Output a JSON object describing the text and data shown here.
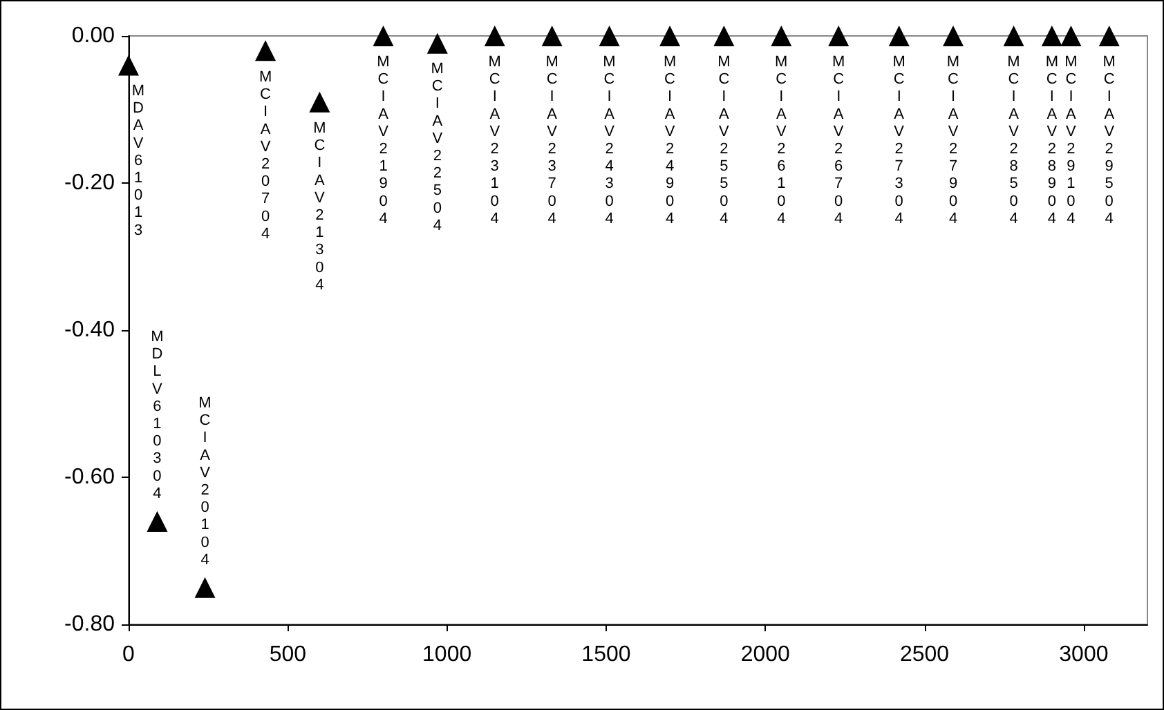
{
  "chart_data": {
    "type": "scatter",
    "marker": "triangle",
    "grid": false,
    "x": [
      0,
      90,
      240,
      430,
      600,
      800,
      970,
      1150,
      1330,
      1510,
      1700,
      1870,
      2050,
      2230,
      2420,
      2590,
      2780,
      2900,
      2960,
      3080
    ],
    "series": [
      {
        "color": "#000000",
        "values": [
          -0.04,
          -0.66,
          -0.75,
          -0.02,
          -0.09,
          0,
          -0.01,
          0,
          0,
          0,
          0,
          0,
          0,
          0,
          0,
          0,
          0,
          0,
          0,
          0
        ]
      }
    ],
    "xlim": [
      0,
      3200
    ],
    "xticks": [
      0,
      500,
      1000,
      1500,
      2000,
      2500,
      3000
    ],
    "ylim": [
      -0.8,
      0
    ],
    "yticks": [
      {
        "value": -0.8,
        "label": "-0.80"
      },
      {
        "value": -0.6,
        "label": "-0.60"
      },
      {
        "value": -0.4,
        "label": "-0.40"
      },
      {
        "value": -0.2,
        "label": "-0.20"
      },
      {
        "value": 0,
        "label": "0.00"
      }
    ],
    "annotations": [
      {
        "text": "MDAV61013",
        "x": 0,
        "y": -0.04
      },
      {
        "text": "MDLV610304",
        "x": 90,
        "y": -0.66
      },
      {
        "text": "MCIAV20104",
        "x": 240,
        "y": -0.75
      },
      {
        "text": "MCIAV20704",
        "x": 430,
        "y": -0.02
      },
      {
        "text": "MCIAV21304",
        "x": 600,
        "y": -0.09
      },
      {
        "text": "MCIAV21904",
        "x": 800,
        "y": 0
      },
      {
        "text": "MCIAV22504",
        "x": 970,
        "y": -0.01
      },
      {
        "text": "MCIAV23104",
        "x": 1150,
        "y": 0
      },
      {
        "text": "MCIAV23704",
        "x": 1330,
        "y": 0
      },
      {
        "text": "MCIAV24304",
        "x": 1510,
        "y": 0
      },
      {
        "text": "MCIAV24904",
        "x": 1700,
        "y": 0
      },
      {
        "text": "MCIAV25504",
        "x": 1870,
        "y": 0
      },
      {
        "text": "MCIAV26104",
        "x": 2050,
        "y": 0
      },
      {
        "text": "MCIAV26704",
        "x": 2230,
        "y": 0
      },
      {
        "text": "MCIAV27304",
        "x": 2420,
        "y": 0
      },
      {
        "text": "MCIAV27904",
        "x": 2590,
        "y": 0
      },
      {
        "text": "MCIAV28504",
        "x": 2780,
        "y": 0
      },
      {
        "text": "MCIAV28904",
        "x": 2900,
        "y": 0
      },
      {
        "text": "MCIAV29104",
        "x": 2960,
        "y": 0
      },
      {
        "text": "MCIAV29504",
        "x": 3080,
        "y": 0
      }
    ]
  }
}
